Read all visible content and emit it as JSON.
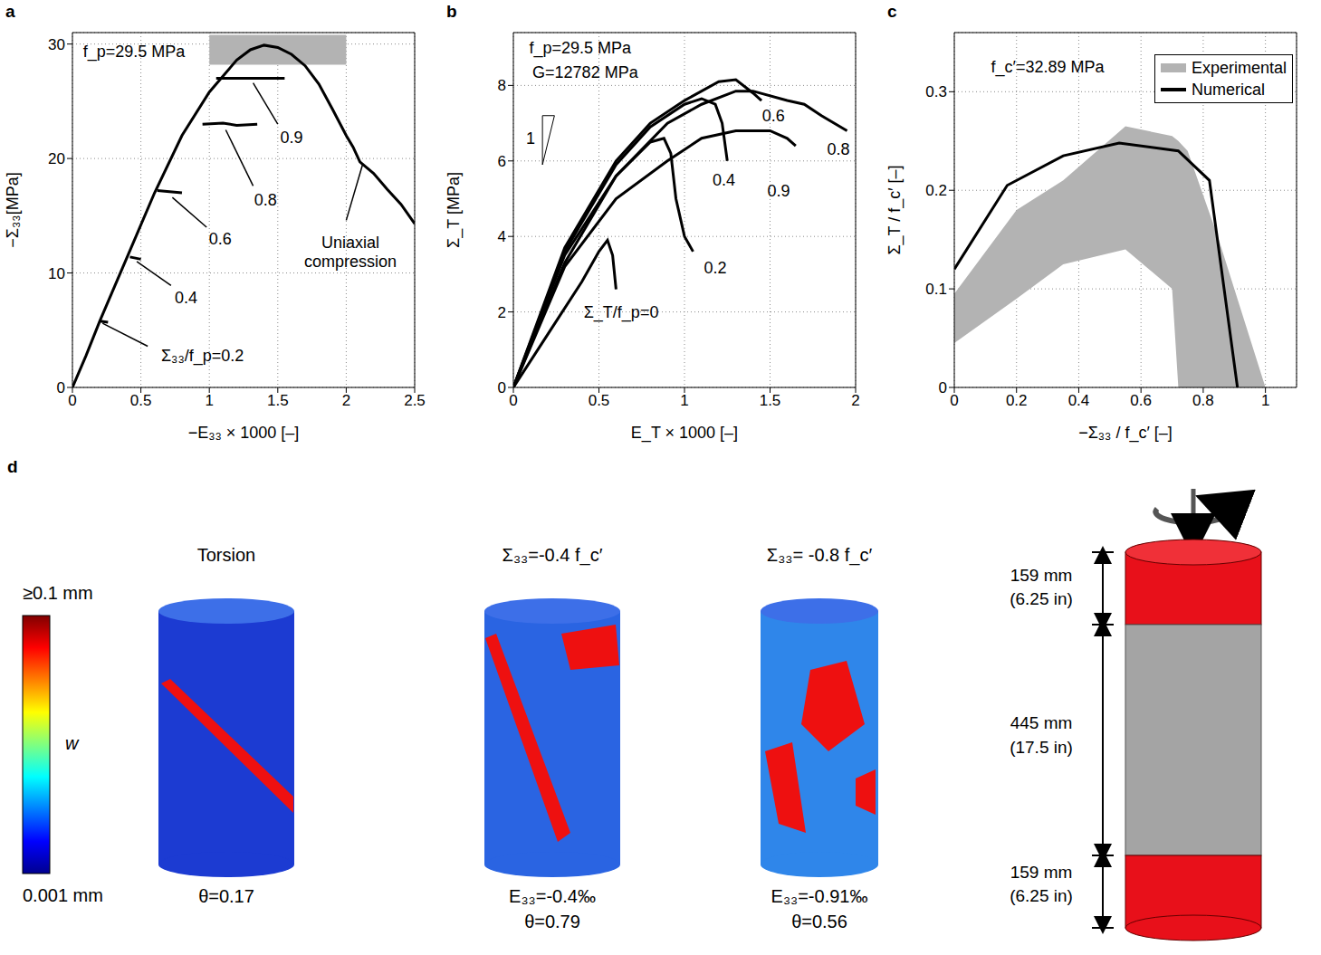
{
  "chart_data": [
    {
      "panel": "a",
      "type": "line",
      "x_label": "−E₃₃ × 1000 [–]",
      "y_label": "−Σ₃₃[MPa]",
      "xlim": [
        0,
        2.5
      ],
      "xticks": [
        0,
        0.5,
        1,
        1.5,
        2,
        2.5
      ],
      "ylim": [
        0,
        31
      ],
      "yticks": [
        0,
        10,
        20,
        30
      ],
      "grid": true,
      "series": [
        {
          "type": "line",
          "color": "#000000",
          "x": [
            0,
            0.1,
            0.2,
            0.4,
            0.6,
            0.8,
            1.0,
            1.2,
            1.3,
            1.4,
            1.5,
            1.6,
            1.7,
            1.8,
            1.9,
            2.0,
            2.05,
            2.1,
            2.2,
            2.3,
            2.4,
            2.5
          ],
          "values": [
            0,
            2.8,
            5.8,
            11.4,
            17,
            22,
            25.8,
            28.6,
            29.5,
            29.9,
            29.7,
            29.1,
            28.1,
            26.5,
            24.3,
            22,
            21,
            19.7,
            18.7,
            17.3,
            16,
            14.3
          ]
        },
        {
          "type": "line",
          "color": "#000000",
          "x": [
            1.05,
            1.55
          ],
          "values": [
            27,
            27
          ]
        },
        {
          "type": "line",
          "color": "#000000",
          "x": [
            0.95,
            1.1,
            1.2,
            1.35
          ],
          "values": [
            23,
            23.1,
            22.9,
            23
          ]
        },
        {
          "type": "line",
          "color": "#000000",
          "x": [
            0.62,
            0.8
          ],
          "values": [
            17.2,
            17
          ]
        },
        {
          "type": "line",
          "color": "#000000",
          "x": [
            0.42,
            0.5
          ],
          "values": [
            11.4,
            11.2
          ]
        },
        {
          "type": "line",
          "color": "#000000",
          "x": [
            0.2,
            0.26
          ],
          "values": [
            5.8,
            5.7
          ]
        }
      ],
      "bands": [
        {
          "x": [
            1,
            2
          ],
          "y": [
            28.2,
            30.8
          ],
          "color": "#b3b3b3"
        }
      ],
      "annotations": [
        {
          "text": "f_p=29.5 MPa",
          "x": 0.45,
          "y": 29.3
        },
        {
          "text": "0.9",
          "x": 1.6,
          "y": 21.8,
          "arrow": [
            [
              1.5,
              23
            ],
            [
              1.32,
              26.6
            ]
          ]
        },
        {
          "text": "0.8",
          "x": 1.41,
          "y": 16.4,
          "arrow": [
            [
              1.32,
              17.6
            ],
            [
              1.12,
              22.5
            ]
          ]
        },
        {
          "text": "0.6",
          "x": 1.08,
          "y": 13,
          "arrow": [
            [
              0.98,
              14
            ],
            [
              0.73,
              16.6
            ]
          ]
        },
        {
          "text": "0.4",
          "x": 0.83,
          "y": 7.8,
          "arrow": [
            [
              0.72,
              8.9
            ],
            [
              0.47,
              11
            ]
          ]
        },
        {
          "text": "Σ₃₃/f_p=0.2",
          "x": 0.95,
          "y": 2.8,
          "arrow": [
            [
              0.55,
              3.6
            ],
            [
              0.22,
              5.6
            ]
          ]
        },
        {
          "text": "Uniaxial compression",
          "x": 2.03,
          "y": 11.8,
          "arrow": [
            [
              2.0,
              14.6
            ],
            [
              2.12,
              19.5
            ]
          ]
        }
      ]
    },
    {
      "panel": "b",
      "type": "line",
      "x_label": "E_T × 1000 [–]",
      "y_label": "Σ_T [MPa]",
      "xlim": [
        0,
        2
      ],
      "xticks": [
        0,
        0.5,
        1,
        1.5,
        2
      ],
      "ylim": [
        0,
        9.4
      ],
      "yticks": [
        0,
        2,
        4,
        6,
        8
      ],
      "grid": true,
      "series": [
        {
          "type": "line",
          "color": "#000000",
          "x": [
            0,
            0.2,
            0.4,
            0.5,
            0.55,
            0.58,
            0.6
          ],
          "values": [
            0,
            1.4,
            2.8,
            3.6,
            3.9,
            3.5,
            2.6
          ]
        },
        {
          "type": "line",
          "color": "#000000",
          "x": [
            0,
            0.3,
            0.6,
            0.8,
            0.88,
            0.92,
            0.95,
            1.0,
            1.05
          ],
          "values": [
            0,
            3.3,
            5.6,
            6.5,
            6.6,
            6.2,
            5,
            4,
            3.6
          ]
        },
        {
          "type": "line",
          "color": "#000000",
          "x": [
            0,
            0.3,
            0.6,
            0.8,
            1.0,
            1.1,
            1.18,
            1.22,
            1.25
          ],
          "values": [
            0,
            3.6,
            5.9,
            6.9,
            7.5,
            7.65,
            7.5,
            7.0,
            6.0
          ]
        },
        {
          "type": "line",
          "color": "#000000",
          "x": [
            0,
            0.3,
            0.6,
            0.8,
            1.0,
            1.2,
            1.3,
            1.4,
            1.45
          ],
          "values": [
            0,
            3.7,
            6,
            7.0,
            7.6,
            8.1,
            8.15,
            7.8,
            7.6
          ]
        },
        {
          "type": "line",
          "color": "#000000",
          "x": [
            0,
            0.3,
            0.6,
            0.9,
            1.1,
            1.3,
            1.4,
            1.6,
            1.7,
            1.8,
            1.95
          ],
          "values": [
            0,
            3.5,
            5.6,
            7.0,
            7.5,
            7.85,
            7.85,
            7.6,
            7.5,
            7.2,
            6.8
          ]
        },
        {
          "type": "line",
          "color": "#000000",
          "x": [
            0,
            0.3,
            0.6,
            0.9,
            1.1,
            1.3,
            1.5,
            1.6,
            1.65
          ],
          "values": [
            0,
            3.2,
            5.0,
            6.0,
            6.6,
            6.8,
            6.8,
            6.6,
            6.4
          ]
        }
      ],
      "slope_triangle": [
        [
          0.17,
          5.9
        ],
        [
          0.17,
          7.2
        ],
        [
          0.24,
          7.2
        ]
      ],
      "annotations": [
        {
          "text": "f_p=29.5 MPa",
          "x": 0.39,
          "y": 9.0
        },
        {
          "text": "G=12782 MPa",
          "x": 0.42,
          "y": 8.35
        },
        {
          "text": "1",
          "x": 0.1,
          "y": 6.6
        },
        {
          "text": "Σ_T/f_p=0",
          "x": 0.63,
          "y": 1.98
        },
        {
          "text": "0.2",
          "x": 1.18,
          "y": 3.17
        },
        {
          "text": "0.4",
          "x": 1.23,
          "y": 5.5
        },
        {
          "text": "0.6",
          "x": 1.52,
          "y": 7.2
        },
        {
          "text": "0.8",
          "x": 1.9,
          "y": 6.3
        },
        {
          "text": "0.9",
          "x": 1.55,
          "y": 5.2
        }
      ]
    },
    {
      "panel": "c",
      "type": "line",
      "x_label": "−Σ₃₃ / f_c′ [–]",
      "y_label": "Σ_T / f_c′ [–]",
      "xlim": [
        0,
        1.1
      ],
      "xticks": [
        0,
        0.2,
        0.4,
        0.6,
        0.8,
        1
      ],
      "ylim": [
        0,
        0.36
      ],
      "yticks": [
        0,
        0.1,
        0.2,
        0.3
      ],
      "grid": true,
      "legend": "top-right",
      "series": [
        {
          "name": "Experimental",
          "type": "area",
          "color": "#b3b3b3",
          "x": [
            0,
            0.2,
            0.35,
            0.55,
            0.7,
            0.72,
            0.75,
            0.85,
            1.0
          ],
          "lower": [
            0.045,
            0.09,
            0.125,
            0.14,
            0.1,
            0,
            0,
            0,
            0
          ],
          "upper": [
            0.095,
            0.18,
            0.21,
            0.265,
            0.255,
            0.25,
            0.24,
            0.15,
            0
          ]
        },
        {
          "name": "Numerical",
          "type": "line",
          "color": "#000000",
          "x": [
            0,
            0.17,
            0.35,
            0.53,
            0.72,
            0.82,
            0.91
          ],
          "values": [
            0.12,
            0.205,
            0.235,
            0.248,
            0.24,
            0.21,
            0
          ]
        }
      ],
      "annotations": [
        {
          "text": "f_c′=32.89 MPa",
          "x": 0.3,
          "y": 0.325
        }
      ]
    }
  ],
  "panel_d": {
    "label": "d",
    "colorbar": {
      "max_label": "≥0.1 mm",
      "mid_label": "w",
      "min_label": "0.001 mm"
    },
    "specimens": [
      {
        "title": "Torsion",
        "captions": [
          "θ=0.17"
        ]
      },
      {
        "title": "Σ₃₃=-0.4 f_c′",
        "captions": [
          "E₃₃=-0.4‰",
          "θ=0.79"
        ]
      },
      {
        "title": "Σ₃₃= -0.8 f_c′",
        "captions": [
          "E₃₃=-0.91‰",
          "θ=0.56"
        ]
      }
    ],
    "dimensions": [
      {
        "value": "159 mm",
        "alt": "(6.25 in)"
      },
      {
        "value": "445 mm",
        "alt": "(17.5 in)"
      },
      {
        "value": "159 mm",
        "alt": "(6.25 in)"
      }
    ]
  }
}
